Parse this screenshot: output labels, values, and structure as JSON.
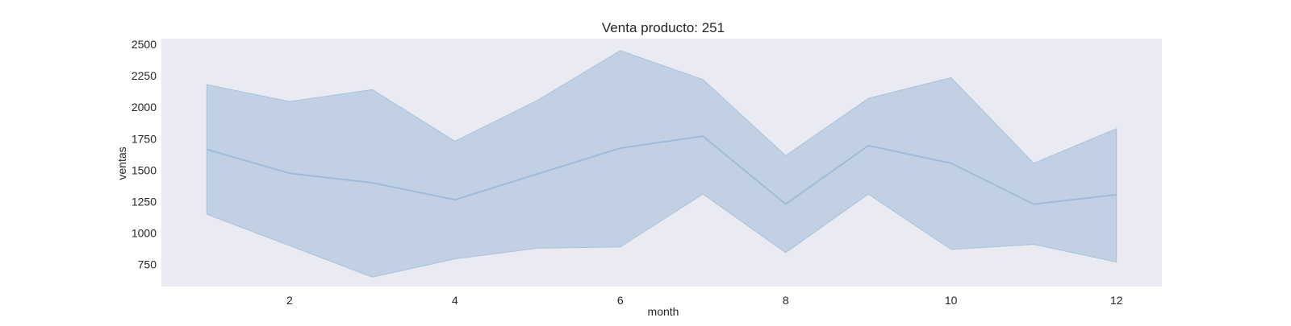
{
  "colors": {
    "plot_background": "#EAEAF2",
    "band_fill": "#C1D1E3",
    "line": "#9EBCDA",
    "band_edge": "#A8C2DC"
  },
  "chart_data": {
    "type": "line",
    "title": "Venta producto: 251",
    "xlabel": "month",
    "ylabel": "ventas",
    "xlim": [
      0.45,
      12.55
    ],
    "ylim": [
      575,
      2545
    ],
    "xticks": [
      2,
      4,
      6,
      8,
      10,
      12
    ],
    "yticks": [
      750,
      1000,
      1250,
      1500,
      1750,
      2000,
      2250,
      2500
    ],
    "grid": false,
    "series": [
      {
        "x": [
          1,
          2,
          3,
          4,
          5,
          6,
          7,
          8,
          9,
          10,
          11,
          12
        ],
        "y": [
          1665,
          1475,
          1400,
          1265,
          1470,
          1675,
          1770,
          1230,
          1695,
          1555,
          1230,
          1305
        ],
        "ci_upper": [
          2180,
          2045,
          2140,
          1730,
          2055,
          2450,
          2220,
          1615,
          2070,
          2235,
          1555,
          1830
        ],
        "ci_lower": [
          1150,
          900,
          650,
          795,
          880,
          890,
          1310,
          845,
          1310,
          870,
          910,
          770
        ]
      }
    ]
  }
}
